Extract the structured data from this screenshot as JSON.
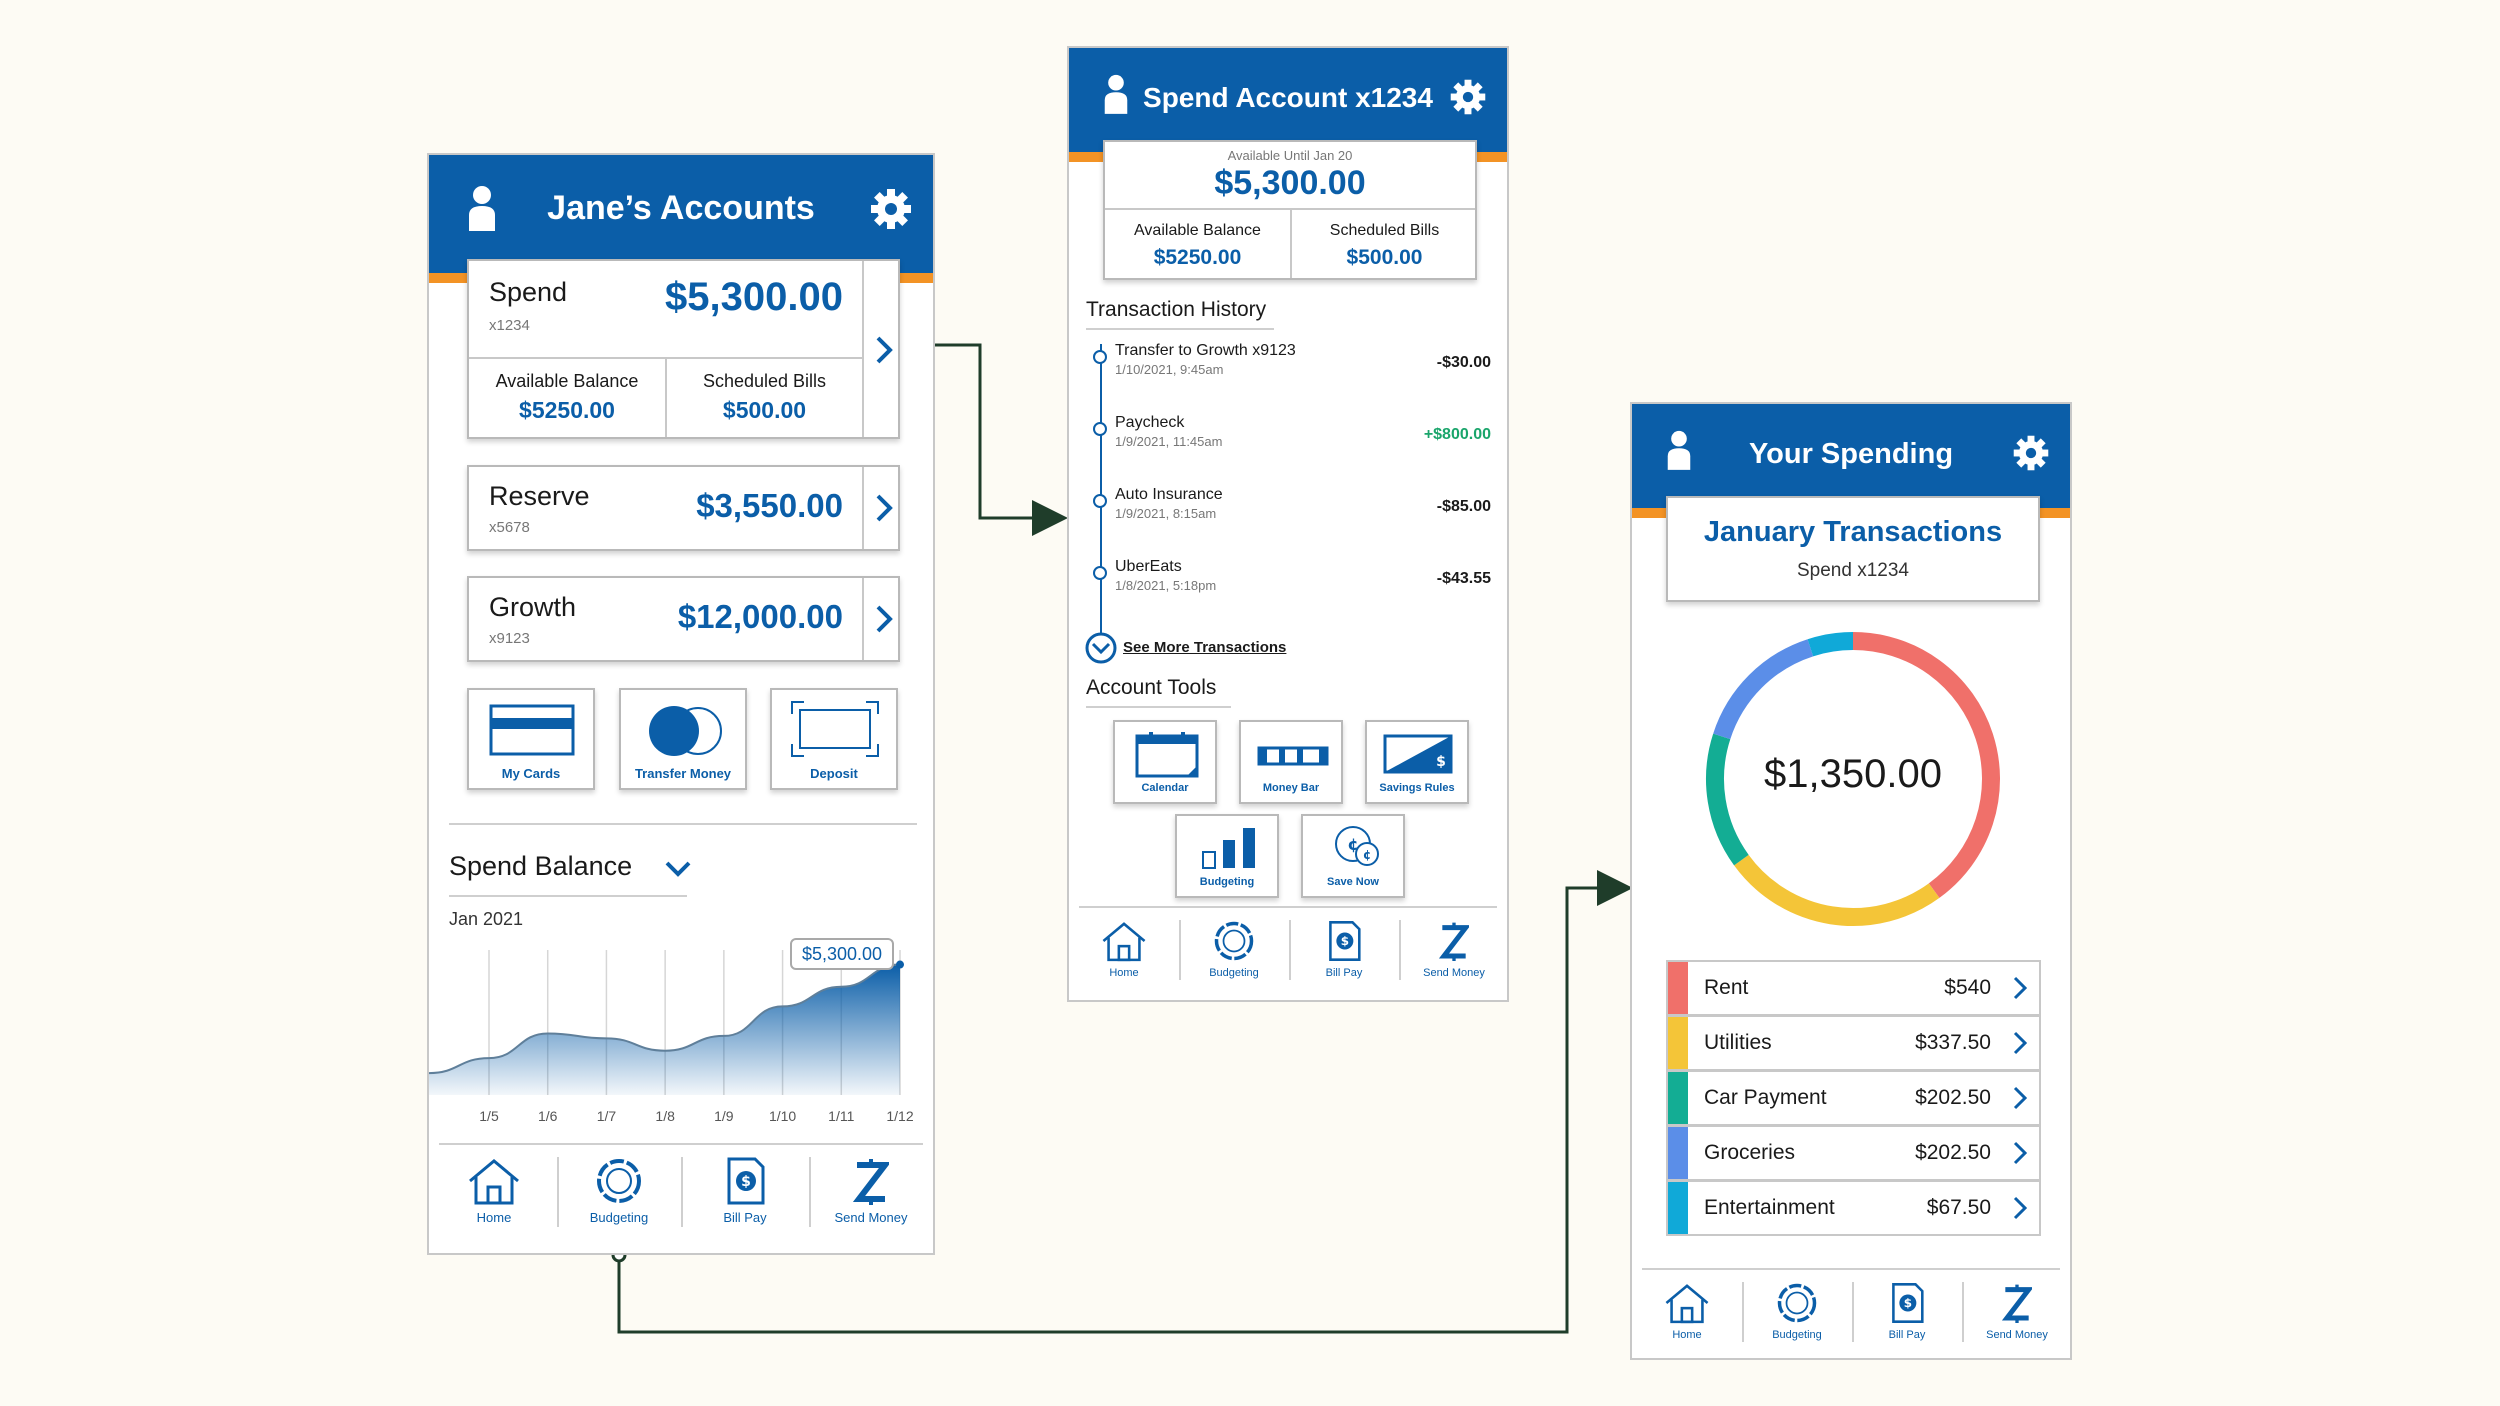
{
  "accounts": {
    "header_title": "Jane’s Accounts",
    "spend": {
      "name": "Spend",
      "number": "x1234",
      "balance": "$5,300.00",
      "available_label": "Available Balance",
      "available_value": "$5250.00",
      "scheduled_label": "Scheduled Bills",
      "scheduled_value": "$500.00"
    },
    "reserve": {
      "name": "Reserve",
      "number": "x5678",
      "balance": "$3,550.00"
    },
    "growth": {
      "name": "Growth",
      "number": "x9123",
      "balance": "$12,000.00"
    },
    "actions": [
      {
        "label": "My Cards"
      },
      {
        "label": "Transfer Money"
      },
      {
        "label": "Deposit"
      }
    ],
    "balance_section": {
      "title": "Spend Balance",
      "period": "Jan 2021",
      "tooltip": "$5,300.00"
    }
  },
  "chart_data": {
    "type": "area",
    "title": "Spend Balance",
    "categories": [
      "1/5",
      "1/6",
      "1/7",
      "1/8",
      "1/9",
      "1/10",
      "1/11",
      "1/12"
    ],
    "values": [
      1500,
      2500,
      2300,
      1800,
      2400,
      3600,
      4400,
      5300
    ],
    "ylim": [
      0,
      6500
    ],
    "grid": true,
    "annotation": "$5,300.00"
  },
  "nav": [
    {
      "label": "Home",
      "icon": "home-icon"
    },
    {
      "label": "Budgeting",
      "icon": "budgeting-icon"
    },
    {
      "label": "Bill Pay",
      "icon": "bill-pay-icon"
    },
    {
      "label": "Send Money",
      "icon": "send-money-icon"
    }
  ],
  "spend_account": {
    "header_title": "Spend Account x1234",
    "available_until": "Available Until Jan 20",
    "balance": "$5,300.00",
    "available_label": "Available Balance",
    "available_value": "$5250.00",
    "scheduled_label": "Scheduled Bills",
    "scheduled_value": "$500.00",
    "history_title": "Transaction History",
    "transactions": [
      {
        "name": "Transfer to Growth x9123",
        "date": "1/10/2021, 9:45am",
        "amount": "-$30.00"
      },
      {
        "name": "Paycheck",
        "date": "1/9/2021, 11:45am",
        "amount": "+$800.00"
      },
      {
        "name": "Auto Insurance",
        "date": "1/9/2021, 8:15am",
        "amount": "-$85.00"
      },
      {
        "name": "UberEats",
        "date": "1/8/2021, 5:18pm",
        "amount": "-$43.55"
      }
    ],
    "see_more": "See More Transactions",
    "tools_title": "Account Tools",
    "tools": [
      {
        "label": "Calendar"
      },
      {
        "label": "Money Bar"
      },
      {
        "label": "Savings Rules"
      },
      {
        "label": "Budgeting"
      },
      {
        "label": "Save Now"
      }
    ]
  },
  "spending": {
    "header_title": "Your Spending",
    "card_title": "January Transactions",
    "card_subtitle": "Spend x1234",
    "total": "$1,350.00",
    "categories": [
      {
        "label": "Rent",
        "amount": "$540",
        "value": 540,
        "color": "#f0706a"
      },
      {
        "label": "Utilities",
        "amount": "$337.50",
        "value": 337.5,
        "color": "#f4c538"
      },
      {
        "label": "Car Payment",
        "amount": "$202.50",
        "value": 202.5,
        "color": "#13ad94"
      },
      {
        "label": "Groceries",
        "amount": "$202.50",
        "value": 202.5,
        "color": "#5b8ee8"
      },
      {
        "label": "Entertainment",
        "amount": "$67.50",
        "value": 67.5,
        "color": "#10a9d8"
      }
    ]
  },
  "colors": {
    "brand": "#0b5ea8",
    "accent": "#f39325",
    "positive": "#1aa56b"
  }
}
